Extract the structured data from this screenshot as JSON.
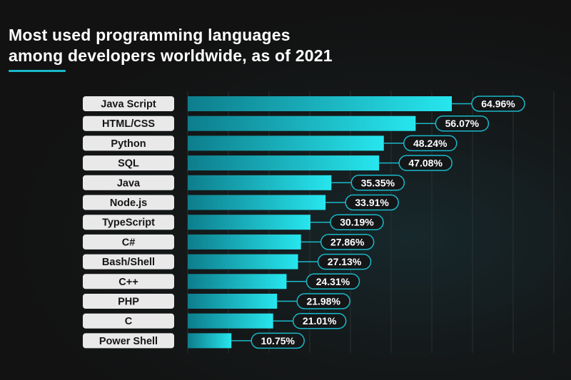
{
  "header": {
    "title_line1": "Most used programming languages",
    "title_line2": "among developers worldwide, as of 2021"
  },
  "colors": {
    "background": "#121212",
    "bar_start": "#0d7d8c",
    "bar_end": "#27e6ee",
    "accent": "#1ab9c9",
    "label_box": "#e9e9e9",
    "text": "#ffffff"
  },
  "chart_data": {
    "type": "bar",
    "orientation": "horizontal",
    "title": "Most used programming languages among developers worldwide, as of 2021",
    "xlabel": "",
    "ylabel": "",
    "xlim": [
      0,
      65
    ],
    "grid": true,
    "categories": [
      "Java Script",
      "HTML/CSS",
      "Python",
      "SQL",
      "Java",
      "Node.js",
      "TypeScript",
      "C#",
      "Bash/Shell",
      "C++",
      "PHP",
      "C",
      "Power Shell"
    ],
    "values": [
      64.96,
      56.07,
      48.24,
      47.08,
      35.35,
      33.91,
      30.19,
      27.86,
      27.13,
      24.31,
      21.98,
      21.01,
      10.75
    ],
    "value_labels": [
      "64.96%",
      "56.07%",
      "48.24%",
      "47.08%",
      "35.35%",
      "33.91%",
      "30.19%",
      "27.86%",
      "27.13%",
      "24.31%",
      "21.98%",
      "21.01%",
      "10.75%"
    ]
  }
}
